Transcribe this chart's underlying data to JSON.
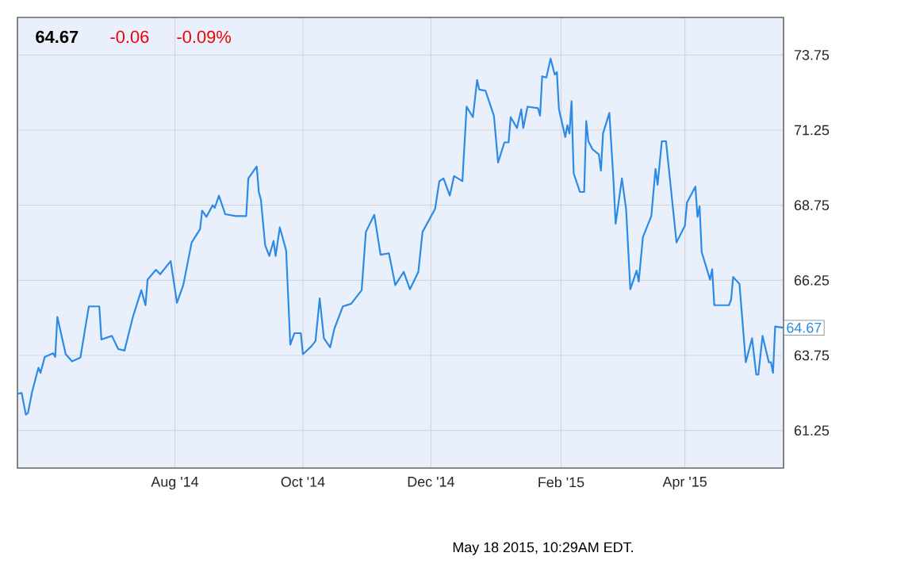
{
  "chart_data": {
    "type": "line",
    "color": "#2a8ae6",
    "grid": true,
    "annotations": [
      "64.67",
      "-0.06",
      "-0.09%",
      "May 18 2015, 10:29AM EDT.",
      {
        "text": "64.67",
        "x": "2015-05-18",
        "y": 64.67
      }
    ],
    "xlim": [
      "2014-05-18",
      "2015-05-18"
    ],
    "xticks": [
      {
        "value": "2014-08-01",
        "label": "Aug '14"
      },
      {
        "value": "2014-10-01",
        "label": "Oct '14"
      },
      {
        "value": "2014-12-01",
        "label": "Dec '14"
      },
      {
        "value": "2015-02-01",
        "label": "Feb '15"
      },
      {
        "value": "2015-04-01",
        "label": "Apr '15"
      }
    ],
    "ylim": [
      60,
      75
    ],
    "yticks": [
      61.25,
      63.75,
      66.25,
      68.75,
      71.25,
      73.75
    ],
    "x": [
      "2014-05-18",
      "2014-05-20",
      "2014-05-22",
      "2014-05-23",
      "2014-05-25",
      "2014-05-28",
      "2014-05-29",
      "2014-05-31",
      "2014-06-04",
      "2014-06-05",
      "2014-06-06",
      "2014-06-10",
      "2014-06-13",
      "2014-06-17",
      "2014-06-21",
      "2014-06-26",
      "2014-06-27",
      "2014-07-02",
      "2014-07-05",
      "2014-07-08",
      "2014-07-12",
      "2014-07-16",
      "2014-07-18",
      "2014-07-19",
      "2014-07-23",
      "2014-07-25",
      "2014-07-30",
      "2014-08-02",
      "2014-08-05",
      "2014-08-09",
      "2014-08-13",
      "2014-08-14",
      "2014-08-16",
      "2014-08-19",
      "2014-08-20",
      "2014-08-22",
      "2014-08-25",
      "2014-08-30",
      "2014-09-04",
      "2014-09-05",
      "2014-09-09",
      "2014-09-10",
      "2014-09-11",
      "2014-09-13",
      "2014-09-15",
      "2014-09-17",
      "2014-09-18",
      "2014-09-20",
      "2014-09-23",
      "2014-09-25",
      "2014-09-27",
      "2014-09-30",
      "2014-10-01",
      "2014-10-05",
      "2014-10-07",
      "2014-10-09",
      "2014-10-11",
      "2014-10-14",
      "2014-10-16",
      "2014-10-20",
      "2014-10-24",
      "2014-10-29",
      "2014-10-31",
      "2014-11-04",
      "2014-11-07",
      "2014-11-11",
      "2014-11-14",
      "2014-11-18",
      "2014-11-21",
      "2014-11-25",
      "2014-11-27",
      "2014-12-03",
      "2014-12-05",
      "2014-12-07",
      "2014-12-10",
      "2014-12-12",
      "2014-12-16",
      "2014-12-18",
      "2014-12-21",
      "2014-12-23",
      "2014-12-24",
      "2014-12-27",
      "2014-12-31",
      "2015-01-02",
      "2015-01-05",
      "2015-01-07",
      "2015-01-08",
      "2015-01-11",
      "2015-01-13",
      "2015-01-14",
      "2015-01-16",
      "2015-01-21",
      "2015-01-22",
      "2015-01-23",
      "2015-01-25",
      "2015-01-27",
      "2015-01-29",
      "2015-01-30",
      "2015-01-31",
      "2015-02-03",
      "2015-02-04",
      "2015-02-05",
      "2015-02-06",
      "2015-02-07",
      "2015-02-10",
      "2015-02-12",
      "2015-02-13",
      "2015-02-14",
      "2015-02-16",
      "2015-02-19",
      "2015-02-20",
      "2015-02-21",
      "2015-02-24",
      "2015-02-26",
      "2015-02-27",
      "2015-03-02",
      "2015-03-04",
      "2015-03-06",
      "2015-03-09",
      "2015-03-10",
      "2015-03-12",
      "2015-03-16",
      "2015-03-18",
      "2015-03-19",
      "2015-03-21",
      "2015-03-23",
      "2015-03-28",
      "2015-04-01",
      "2015-04-02",
      "2015-04-06",
      "2015-04-07",
      "2015-04-08",
      "2015-04-09",
      "2015-04-13",
      "2015-04-14",
      "2015-04-15",
      "2015-04-22",
      "2015-04-23",
      "2015-04-24",
      "2015-04-27",
      "2015-04-30",
      "2015-05-03",
      "2015-05-05",
      "2015-05-06",
      "2015-05-08",
      "2015-05-11",
      "2015-05-12",
      "2015-05-13",
      "2015-05-14",
      "2015-05-18"
    ],
    "values": [
      62.47,
      62.5,
      61.78,
      61.83,
      62.54,
      63.34,
      63.17,
      63.7,
      63.82,
      63.7,
      65.03,
      63.79,
      63.55,
      63.68,
      65.38,
      65.38,
      64.28,
      64.4,
      63.96,
      63.91,
      65.03,
      65.92,
      65.42,
      66.27,
      66.6,
      66.45,
      66.89,
      65.5,
      66.09,
      67.51,
      67.95,
      68.57,
      68.36,
      68.75,
      68.66,
      69.07,
      68.45,
      68.39,
      68.39,
      69.64,
      70.04,
      69.19,
      68.93,
      67.42,
      67.06,
      67.56,
      67.06,
      68.01,
      67.25,
      64.11,
      64.49,
      64.49,
      63.79,
      64.05,
      64.23,
      65.65,
      64.32,
      64.02,
      64.64,
      65.38,
      65.47,
      65.92,
      67.86,
      68.43,
      67.1,
      67.15,
      66.09,
      66.53,
      65.95,
      66.53,
      67.86,
      68.63,
      69.55,
      69.64,
      69.07,
      69.72,
      69.55,
      72.03,
      71.68,
      72.92,
      72.6,
      72.56,
      71.73,
      70.17,
      70.84,
      70.84,
      71.68,
      71.32,
      71.94,
      71.32,
      72.03,
      71.98,
      71.73,
      73.04,
      73.0,
      73.63,
      73.1,
      73.18,
      71.94,
      71.02,
      71.41,
      71.14,
      72.21,
      69.81,
      69.19,
      69.19,
      71.55,
      70.88,
      70.61,
      70.44,
      69.9,
      71.14,
      71.82,
      69.55,
      68.13,
      69.64,
      68.61,
      65.95,
      66.57,
      66.21,
      67.69,
      68.39,
      69.96,
      69.43,
      70.88,
      70.88,
      67.51,
      68.07,
      68.84,
      69.37,
      68.36,
      68.71,
      67.19,
      66.27,
      66.62,
      65.42,
      65.42,
      65.6,
      66.36,
      66.13,
      63.52,
      64.32,
      63.11,
      63.11,
      64.4,
      63.52,
      63.52,
      63.17,
      64.71,
      64.67
    ]
  }
}
